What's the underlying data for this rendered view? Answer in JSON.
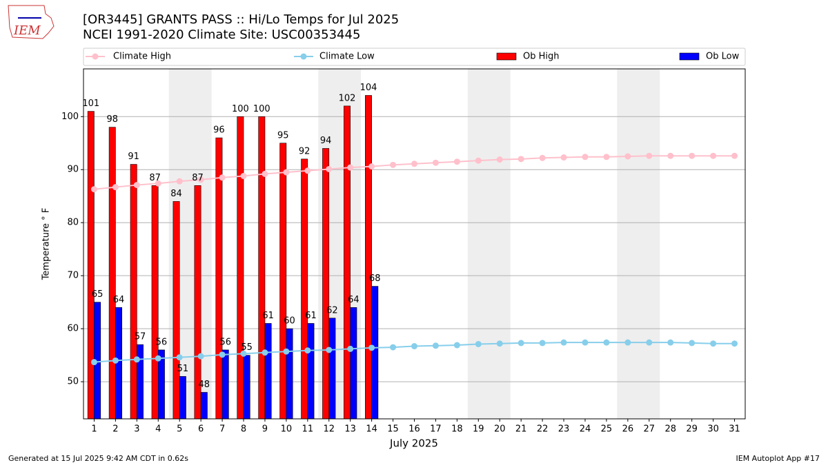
{
  "chart_data": {
    "type": "bar",
    "title": "[OR3445] GRANTS PASS :: Hi/Lo Temps for Jul 2025",
    "subtitle": "NCEI 1991-2020 Climate Site: USC00353445",
    "logo": "IEM",
    "ylabel": "Temperature ° F",
    "xlabel": "July 2025",
    "footer_left": "Generated at 15 Jul 2025 9:42 AM CDT in 0.62s",
    "footer_right": "IEM Autoplot App #17",
    "categories": [
      "1",
      "2",
      "3",
      "4",
      "5",
      "6",
      "7",
      "8",
      "9",
      "10",
      "11",
      "12",
      "13",
      "14",
      "15",
      "16",
      "17",
      "18",
      "19",
      "20",
      "21",
      "22",
      "23",
      "24",
      "25",
      "26",
      "27",
      "28",
      "29",
      "30",
      "31"
    ],
    "shaded_categories": [
      [
        "5",
        "6"
      ],
      [
        "12",
        "13"
      ],
      [
        "19",
        "20"
      ],
      [
        "26",
        "27"
      ]
    ],
    "ylim": [
      43,
      109
    ],
    "yticks": [
      50,
      60,
      70,
      80,
      90,
      100
    ],
    "grid": true,
    "series": [
      {
        "name": "Climate High",
        "color": "#ffc0cb",
        "kind": "line",
        "values": [
          86.3,
          86.7,
          87.1,
          87.4,
          87.8,
          88.1,
          88.5,
          88.8,
          89.2,
          89.5,
          89.8,
          90.1,
          90.4,
          90.6,
          90.9,
          91.1,
          91.3,
          91.5,
          91.7,
          91.9,
          92.0,
          92.2,
          92.3,
          92.4,
          92.4,
          92.5,
          92.6,
          92.6,
          92.6,
          92.6,
          92.6
        ]
      },
      {
        "name": "Climate Low",
        "color": "#87ceeb",
        "kind": "line",
        "values": [
          53.7,
          54.0,
          54.2,
          54.4,
          54.6,
          54.8,
          55.1,
          55.3,
          55.5,
          55.7,
          55.9,
          56.0,
          56.2,
          56.4,
          56.5,
          56.7,
          56.8,
          56.9,
          57.1,
          57.2,
          57.3,
          57.3,
          57.4,
          57.4,
          57.4,
          57.4,
          57.4,
          57.4,
          57.3,
          57.2,
          57.2
        ]
      },
      {
        "name": "Ob High",
        "color": "#ff0000",
        "kind": "bar",
        "values": [
          101,
          98,
          91,
          87,
          84,
          87,
          96,
          100,
          100,
          95,
          92,
          94,
          102,
          104,
          null,
          null,
          null,
          null,
          null,
          null,
          null,
          null,
          null,
          null,
          null,
          null,
          null,
          null,
          null,
          null,
          null
        ]
      },
      {
        "name": "Ob Low",
        "color": "#0000ff",
        "kind": "bar",
        "values": [
          65,
          64,
          57,
          56,
          51,
          48,
          56,
          55,
          61,
          60,
          61,
          62,
          64,
          68,
          null,
          null,
          null,
          null,
          null,
          null,
          null,
          null,
          null,
          null,
          null,
          null,
          null,
          null,
          null,
          null,
          null
        ]
      }
    ]
  }
}
